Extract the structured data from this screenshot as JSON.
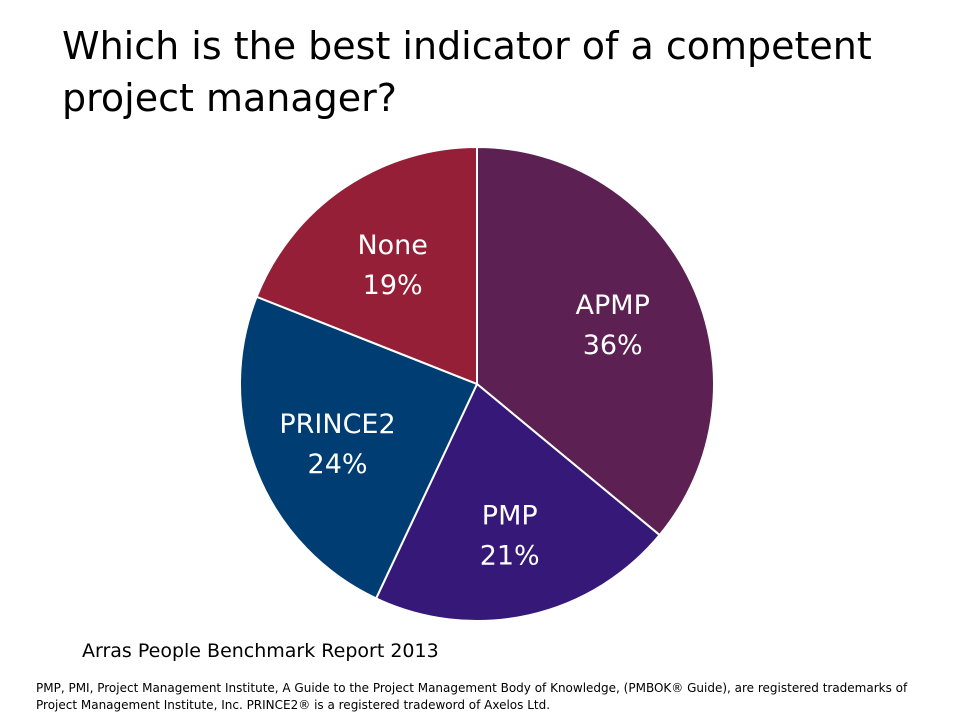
{
  "title": "Which is the best indicator of a competent project manager?",
  "source": "Arras People Benchmark Report 2013",
  "footnote": "PMP, PMI, Project Management Institute, A Guide to the Project Management Body of Knowledge, (PMBOK® Guide), are registered trademarks of Project Management Institute, Inc. PRINCE2® is a registered tradeword of Axelos Ltd.",
  "chart_data": {
    "type": "pie",
    "title": "Which is the best indicator of a competent project manager?",
    "slices": [
      {
        "name": "APMP",
        "value": 36,
        "label": "36%",
        "color": "#5c2152"
      },
      {
        "name": "PMP",
        "value": 21,
        "label": "21%",
        "color": "#351877"
      },
      {
        "name": "PRINCE2",
        "value": 24,
        "label": "24%",
        "color": "#003d73"
      },
      {
        "name": "None",
        "value": 19,
        "label": "19%",
        "color": "#941f36"
      }
    ],
    "start_angle": "12 o'clock",
    "direction": "clockwise",
    "border_color": "#ffffff"
  }
}
